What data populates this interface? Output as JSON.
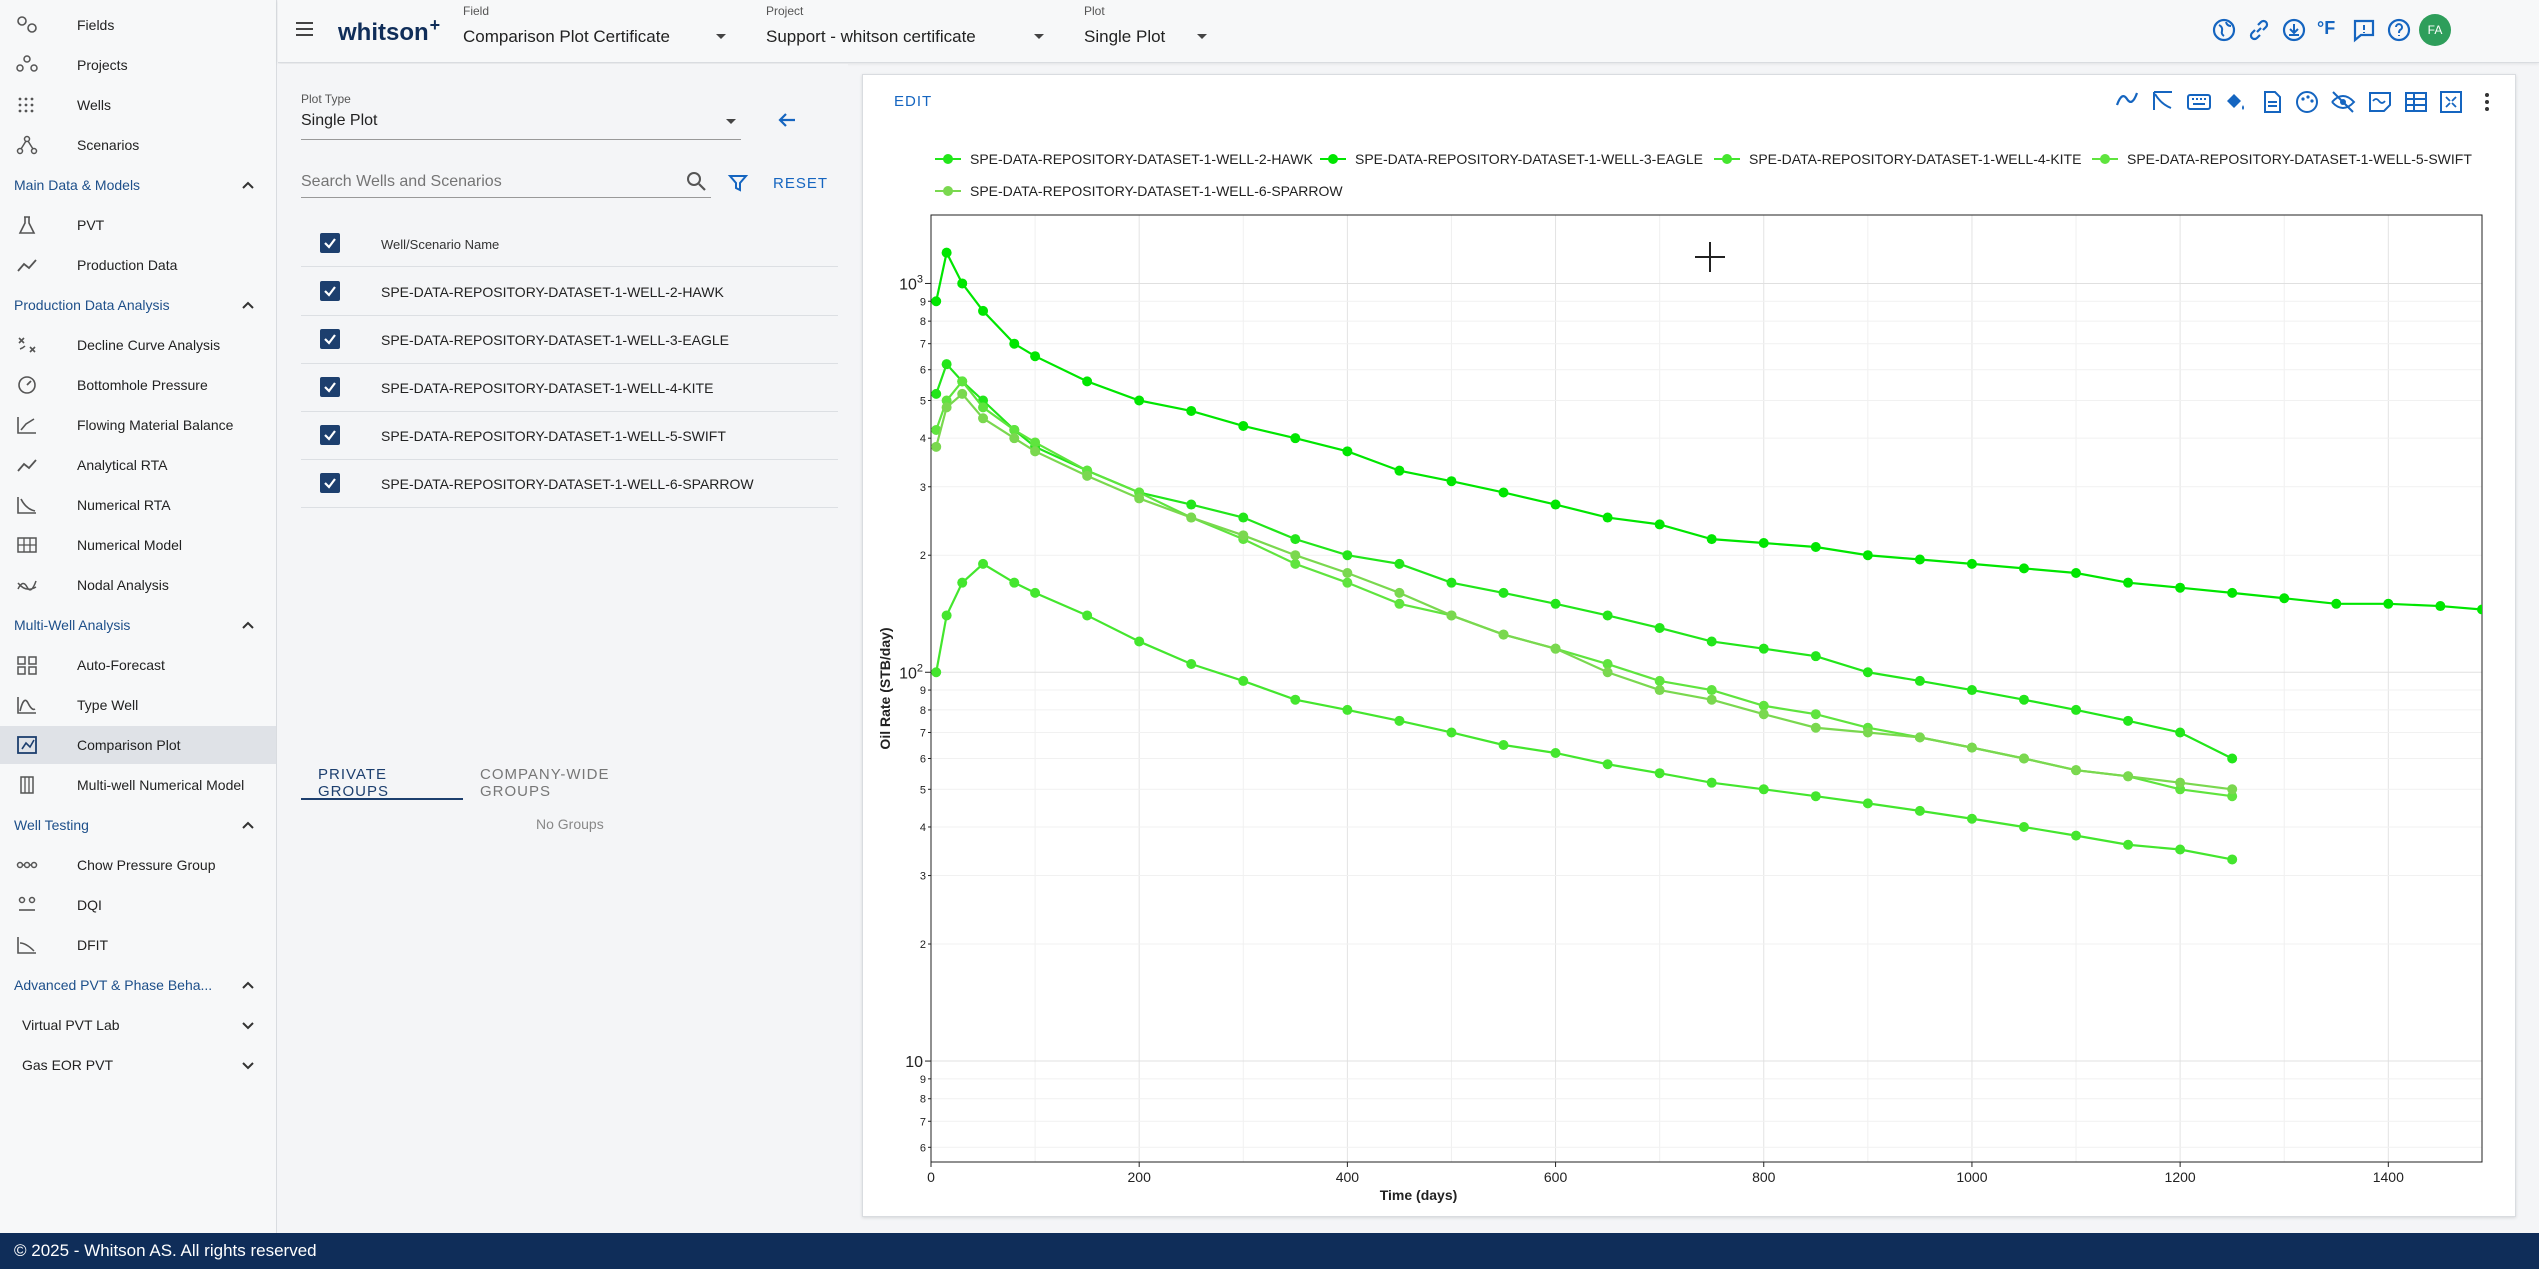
{
  "sidebar": {
    "top_items": [
      {
        "label": "Fields",
        "icon": "fields-icon"
      },
      {
        "label": "Projects",
        "icon": "projects-icon"
      },
      {
        "label": "Wells",
        "icon": "wells-icon"
      },
      {
        "label": "Scenarios",
        "icon": "scenarios-icon"
      }
    ],
    "sections": [
      {
        "title": "Main Data & Models",
        "items": [
          {
            "label": "PVT",
            "icon": "flask-icon"
          },
          {
            "label": "Production Data",
            "icon": "line-chart-icon"
          }
        ]
      },
      {
        "title": "Production Data Analysis",
        "items": [
          {
            "label": "Decline Curve Analysis",
            "icon": "dca-icon"
          },
          {
            "label": "Bottomhole Pressure",
            "icon": "gauge-icon"
          },
          {
            "label": "Flowing Material Balance",
            "icon": "fmb-icon"
          },
          {
            "label": "Analytical RTA",
            "icon": "trend-icon"
          },
          {
            "label": "Numerical RTA",
            "icon": "numerical-rta-icon"
          },
          {
            "label": "Numerical Model",
            "icon": "grid-model-icon"
          },
          {
            "label": "Nodal Analysis",
            "icon": "nodal-icon"
          }
        ]
      },
      {
        "title": "Multi-Well Analysis",
        "items": [
          {
            "label": "Auto-Forecast",
            "icon": "auto-forecast-icon"
          },
          {
            "label": "Type Well",
            "icon": "type-well-icon"
          },
          {
            "label": "Comparison Plot",
            "icon": "comparison-plot-icon",
            "active": true
          },
          {
            "label": "Multi-well Numerical Model",
            "icon": "multiwell-icon"
          }
        ]
      },
      {
        "title": "Well Testing",
        "items": [
          {
            "label": "Chow Pressure Group",
            "icon": "chow-icon"
          },
          {
            "label": "DQI",
            "icon": "dqi-icon"
          },
          {
            "label": "DFIT",
            "icon": "dfit-icon"
          }
        ]
      },
      {
        "title": "Advanced PVT & Phase Beha...",
        "items": []
      }
    ],
    "sub_sections": [
      {
        "title": "Virtual PVT Lab"
      },
      {
        "title": "Gas EOR PVT"
      }
    ]
  },
  "topbar": {
    "logo": "whitson",
    "logo_plus": "+",
    "field_label": "Field",
    "field_value": "Comparison Plot Certificate",
    "project_label": "Project",
    "project_value": "Support - whitson certificate",
    "plot_label": "Plot",
    "plot_value": "Single Plot",
    "temp_unit": "°F",
    "avatar": "FA"
  },
  "left_panel": {
    "plot_type_label": "Plot Type",
    "plot_type_value": "Single Plot",
    "search_placeholder": "Search Wells and Scenarios",
    "reset_label": "RESET",
    "column_header": "Well/Scenario Name",
    "wells": [
      "SPE-DATA-REPOSITORY-DATASET-1-WELL-2-HAWK",
      "SPE-DATA-REPOSITORY-DATASET-1-WELL-3-EAGLE",
      "SPE-DATA-REPOSITORY-DATASET-1-WELL-4-KITE",
      "SPE-DATA-REPOSITORY-DATASET-1-WELL-5-SWIFT",
      "SPE-DATA-REPOSITORY-DATASET-1-WELL-6-SPARROW"
    ],
    "tabs": [
      "PRIVATE GROUPS",
      "COMPANY-WIDE GROUPS"
    ],
    "no_groups": "No Groups"
  },
  "chart_card": {
    "edit_label": "EDIT"
  },
  "chart_data": {
    "type": "scatter",
    "xlabel": "Time (days)",
    "ylabel": "Oil Rate (STB/day)",
    "xlim": [
      0,
      1490
    ],
    "ylim": [
      5.5,
      1500
    ],
    "y_scale": "log",
    "x_ticks": [
      "0",
      "200",
      "400",
      "600",
      "800",
      "1000",
      "1200",
      "1400"
    ],
    "y_major_ticks": [
      {
        "base": "10",
        "exp": ""
      },
      {
        "base": "10",
        "exp": "2"
      },
      {
        "base": "10",
        "exp": "3"
      }
    ],
    "y_minor_ticks": [
      "2",
      "3",
      "4",
      "5",
      "6",
      "7",
      "8",
      "9"
    ],
    "grid": true,
    "legend_position": "top",
    "series": [
      {
        "name": "SPE-DATA-REPOSITORY-DATASET-1-WELL-2-HAWK",
        "color": "#22e61a",
        "x": [
          5,
          15,
          30,
          50,
          80,
          100,
          150,
          200,
          250,
          300,
          350,
          400,
          450,
          500,
          550,
          600,
          650,
          700,
          750,
          800,
          850,
          900,
          950,
          1000,
          1050,
          1100,
          1150,
          1200,
          1250
        ],
        "y": [
          520,
          620,
          560,
          500,
          420,
          380,
          330,
          290,
          270,
          250,
          220,
          200,
          190,
          170,
          160,
          150,
          140,
          130,
          120,
          115,
          110,
          100,
          95,
          90,
          85,
          80,
          75,
          70,
          60
        ]
      },
      {
        "name": "SPE-DATA-REPOSITORY-DATASET-1-WELL-3-EAGLE",
        "color": "#00e600",
        "x": [
          5,
          15,
          30,
          50,
          80,
          100,
          150,
          200,
          250,
          300,
          350,
          400,
          450,
          500,
          550,
          600,
          650,
          700,
          750,
          800,
          850,
          900,
          950,
          1000,
          1050,
          1100,
          1150,
          1200,
          1250,
          1300,
          1350,
          1400,
          1450,
          1490
        ],
        "y": [
          900,
          1200,
          1000,
          850,
          700,
          650,
          560,
          500,
          470,
          430,
          400,
          370,
          330,
          310,
          290,
          270,
          250,
          240,
          220,
          215,
          210,
          200,
          195,
          190,
          185,
          180,
          170,
          165,
          160,
          155,
          150,
          150,
          148,
          145
        ]
      },
      {
        "name": "SPE-DATA-REPOSITORY-DATASET-1-WELL-4-KITE",
        "color": "#44e62e",
        "x": [
          5,
          15,
          30,
          50,
          80,
          100,
          150,
          200,
          250,
          300,
          350,
          400,
          450,
          500,
          550,
          600,
          650,
          700,
          750,
          800,
          850,
          900,
          950,
          1000,
          1050,
          1100,
          1150,
          1200,
          1250
        ],
        "y": [
          100,
          140,
          170,
          190,
          170,
          160,
          140,
          120,
          105,
          95,
          85,
          80,
          75,
          70,
          65,
          62,
          58,
          55,
          52,
          50,
          48,
          46,
          44,
          42,
          40,
          38,
          36,
          35,
          33
        ]
      },
      {
        "name": "SPE-DATA-REPOSITORY-DATASET-1-WELL-5-SWIFT",
        "color": "#5fe43e",
        "x": [
          5,
          15,
          30,
          50,
          80,
          100,
          150,
          200,
          250,
          300,
          350,
          400,
          450,
          500,
          550,
          600,
          650,
          700,
          750,
          800,
          850,
          900,
          950,
          1000,
          1050,
          1100,
          1150,
          1200,
          1250
        ],
        "y": [
          420,
          500,
          560,
          480,
          420,
          390,
          330,
          290,
          250,
          220,
          190,
          170,
          150,
          140,
          125,
          115,
          105,
          95,
          90,
          82,
          78,
          72,
          68,
          64,
          60,
          56,
          54,
          50,
          48
        ]
      },
      {
        "name": "SPE-DATA-REPOSITORY-DATASET-1-WELL-6-SPARROW",
        "color": "#7ad84f",
        "x": [
          5,
          15,
          30,
          50,
          80,
          100,
          150,
          200,
          250,
          300,
          350,
          400,
          450,
          500,
          550,
          600,
          650,
          700,
          750,
          800,
          850,
          900,
          950,
          1000,
          1050,
          1100,
          1150,
          1200,
          1250
        ],
        "y": [
          380,
          480,
          520,
          450,
          400,
          370,
          320,
          280,
          250,
          225,
          200,
          180,
          160,
          140,
          125,
          115,
          100,
          90,
          85,
          78,
          72,
          70,
          68,
          64,
          60,
          56,
          54,
          52,
          50
        ]
      }
    ]
  }
}
